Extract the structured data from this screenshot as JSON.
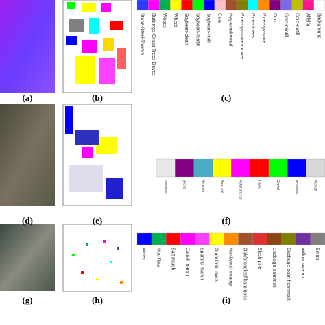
{
  "panels": [
    {
      "caption": "(a)"
    },
    {
      "caption": "(b)"
    },
    {
      "caption": "(c)"
    },
    {
      "caption": "(d)"
    },
    {
      "caption": "(e)"
    },
    {
      "caption": "(f)"
    },
    {
      "caption": "(g)"
    },
    {
      "caption": "(h)"
    },
    {
      "caption": "(i)"
    }
  ],
  "legends": [
    {
      "labels": [
        "Stone-Steel-Towers",
        "Buildings-Grass-Trees-Drives",
        "Woods",
        "Wheat",
        "Soybean-clean",
        "Soybean-mintill",
        "Soybean-notill",
        "Oats",
        "Hay-windrowed",
        "Grass-pasture-mowed",
        "Grass-trees",
        "Grass-pasture",
        "Corn",
        "Corn-mintill",
        "Corn-notill",
        "Alfalfa",
        "Background"
      ],
      "colors": [
        "#2a3cff",
        "#ff00ff",
        "#00b050",
        "#ffff00",
        "#ff0000",
        "#00ff00",
        "#0000ff",
        "#ffc0cb",
        "#a0522d",
        "#808000",
        "#00ffff",
        "#ff8c00",
        "#800080",
        "#7b68ee",
        "#c0c000",
        "#ff1493",
        "#ffffff"
      ]
    },
    {
      "labels": [
        "Shadows",
        "Bricks",
        "Bitumen",
        "Bare soil",
        "Metal sheets",
        "Trees",
        "Gravel",
        "Meadows",
        "Asphalt"
      ],
      "colors": [
        "#e8e8e8",
        "#800080",
        "#4bacc6",
        "#ffff00",
        "#ff00ff",
        "#ff0000",
        "#00ff00",
        "#0000ff",
        "#d8d8d8"
      ]
    },
    {
      "labels": [
        "Water",
        "Mud flats",
        "Salt marsh",
        "Cattail marsh",
        "Spartina marsh",
        "Graminoid mars",
        "Hardwood swamp",
        "Oak/broadleaf hammock",
        "Slash pine",
        "Cabbage palm/oak",
        "Cabbage palm hammock",
        "Willow swamp",
        "Scrub"
      ],
      "colors": [
        "#0000ff",
        "#00b050",
        "#ff0000",
        "#ff00ff",
        "#ff40ff",
        "#ffff00",
        "#ff8c00",
        "#a0522d",
        "#e03030",
        "#8b4513",
        "#808000",
        "#7030a0",
        "#808080"
      ]
    }
  ]
}
